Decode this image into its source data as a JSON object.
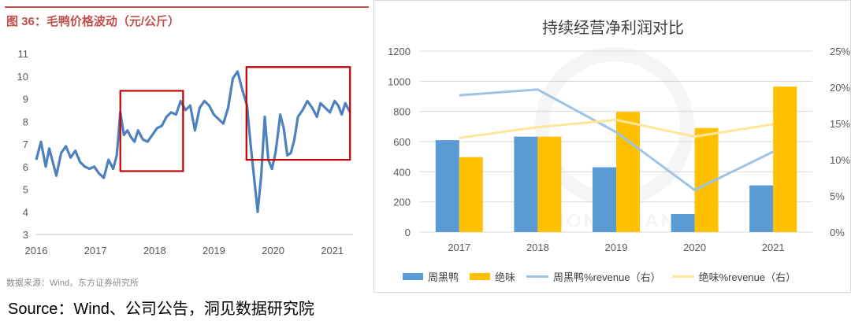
{
  "left": {
    "title": "图 36：毛鸭价格波动（元/公斤）",
    "source": "数据来源：Wind，东方证券研究所"
  },
  "right": {
    "title": "持续经营净利润对比",
    "watermark": "VISION FINANCE"
  },
  "caption": "Source：Wind、公司公告，洞见数据研究院",
  "colors": {
    "title_red": "#c0504d",
    "line_blue": "#4f81bd",
    "box_red": "#c00000",
    "bar_blue": "#5b9bd5",
    "bar_yellow": "#ffc000",
    "line_light_blue": "#9dc3e6",
    "line_light_yellow": "#ffe699"
  },
  "chart_data": [
    {
      "type": "line",
      "title": "毛鸭价格波动（元/公斤）",
      "x_ticks": [
        "2016",
        "2017",
        "2018",
        "2019",
        "2020",
        "2021"
      ],
      "y_ticks": [
        "3",
        "4",
        "5",
        "6",
        "7",
        "8",
        "9",
        "10",
        "11"
      ],
      "ylim": [
        3,
        11
      ],
      "xlim": [
        2016.0,
        2021.35
      ],
      "series": [
        {
          "x": [
            2016.0,
            2016.08,
            2016.16,
            2016.22,
            2016.28,
            2016.34,
            2016.42,
            2016.5,
            2016.58,
            2016.66,
            2016.74,
            2016.82,
            2016.9,
            2016.98,
            2017.06,
            2017.14,
            2017.22,
            2017.3,
            2017.36,
            2017.42,
            2017.48,
            2017.54,
            2017.6,
            2017.66,
            2017.72,
            2017.8,
            2017.88,
            2017.96,
            2018.04,
            2018.12,
            2018.2,
            2018.28,
            2018.36,
            2018.44,
            2018.52,
            2018.6,
            2018.68,
            2018.76,
            2018.84,
            2018.92,
            2019.0,
            2019.08,
            2019.16,
            2019.24,
            2019.32,
            2019.4,
            2019.48,
            2019.56,
            2019.62,
            2019.68,
            2019.74,
            2019.8,
            2019.86,
            2019.92,
            2019.98,
            2020.04,
            2020.08,
            2020.12,
            2020.18,
            2020.24,
            2020.3,
            2020.36,
            2020.42,
            2020.5,
            2020.58,
            2020.66,
            2020.74,
            2020.8,
            2020.88,
            2020.96,
            2021.04,
            2021.1,
            2021.16,
            2021.22,
            2021.3
          ],
          "y": [
            6.3,
            7.1,
            6.0,
            6.8,
            6.2,
            5.6,
            6.6,
            6.9,
            6.4,
            6.7,
            6.2,
            6.0,
            5.9,
            6.0,
            5.7,
            5.5,
            6.3,
            5.9,
            6.5,
            8.4,
            7.4,
            7.6,
            7.3,
            7.1,
            7.6,
            7.2,
            7.1,
            7.4,
            7.7,
            7.8,
            8.2,
            8.4,
            8.3,
            8.9,
            8.5,
            8.7,
            7.6,
            8.6,
            8.9,
            8.7,
            8.3,
            8.1,
            7.9,
            8.6,
            9.9,
            10.2,
            9.4,
            8.7,
            7.0,
            5.5,
            4.0,
            5.6,
            8.2,
            6.3,
            5.9,
            6.6,
            7.4,
            8.3,
            7.7,
            6.5,
            6.6,
            7.2,
            8.2,
            8.5,
            8.9,
            8.6,
            8.2,
            8.8,
            8.6,
            8.4,
            8.9,
            8.7,
            8.3,
            8.8,
            8.4
          ]
        }
      ],
      "highlight_boxes": [
        {
          "x0": 2017.42,
          "x1": 2018.48,
          "y0": 5.8,
          "y1": 9.35
        },
        {
          "x0": 2019.55,
          "x1": 2021.3,
          "y0": 6.3,
          "y1": 10.4
        }
      ]
    },
    {
      "type": "bar",
      "title": "持续经营净利润对比",
      "categories": [
        "2017",
        "2018",
        "2019",
        "2020",
        "2021"
      ],
      "ylim": [
        0,
        1200
      ],
      "y_ticks": [
        "0",
        "200",
        "400",
        "600",
        "800",
        "1000",
        "1200"
      ],
      "y2lim": [
        0,
        25
      ],
      "y2_ticks": [
        "0%",
        "5%",
        "10%",
        "15%",
        "20%",
        "25%"
      ],
      "series": [
        {
          "name": "周黑鸭",
          "type": "bar",
          "values": [
            610,
            633,
            430,
            120,
            310
          ]
        },
        {
          "name": "绝味",
          "type": "bar",
          "values": [
            497,
            633,
            797,
            690,
            965
          ]
        },
        {
          "name": "周黑鸭%revenue（右）",
          "type": "line",
          "axis": "right",
          "values": [
            18.9,
            19.7,
            13.8,
            5.8,
            11.1
          ]
        },
        {
          "name": "绝味%revenue（右）",
          "type": "line",
          "axis": "right",
          "values": [
            13.0,
            14.5,
            15.5,
            13.2,
            14.9
          ]
        }
      ]
    }
  ]
}
